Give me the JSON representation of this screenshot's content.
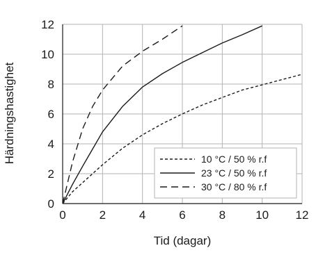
{
  "chart_data": {
    "type": "line",
    "title": "",
    "xlabel": "Tid (dagar)",
    "ylabel": "Härdningshastighet",
    "xlim": [
      0,
      12
    ],
    "ylim": [
      0,
      12
    ],
    "xticks": [
      0,
      2,
      4,
      6,
      8,
      10,
      12
    ],
    "yticks": [
      0,
      2,
      4,
      6,
      8,
      10,
      12
    ],
    "grid": true,
    "legend_position": "bottom-right",
    "series": [
      {
        "name": "10 °C / 50 % r.f",
        "style": "dotted",
        "color": "#1a1a1a",
        "x": [
          0,
          0.5,
          1,
          2,
          3,
          4,
          5,
          6,
          7,
          8,
          9,
          10,
          11,
          12
        ],
        "y": [
          0,
          0.8,
          1.4,
          2.6,
          3.7,
          4.6,
          5.35,
          6.0,
          6.6,
          7.1,
          7.6,
          7.95,
          8.3,
          8.65
        ]
      },
      {
        "name": "23 °C / 50 % r.f",
        "style": "solid",
        "color": "#1a1a1a",
        "x": [
          0,
          0.5,
          1,
          2,
          3,
          4,
          5,
          6,
          7,
          8,
          9,
          10
        ],
        "y": [
          0,
          1.3,
          2.5,
          4.8,
          6.5,
          7.8,
          8.7,
          9.45,
          10.1,
          10.75,
          11.3,
          11.9
        ]
      },
      {
        "name": "30 °C / 80 % r.f",
        "style": "dashed",
        "color": "#1a1a1a",
        "x": [
          0,
          0.5,
          1,
          1.5,
          2,
          3,
          4,
          5,
          6
        ],
        "y": [
          0,
          2.8,
          5.0,
          6.5,
          7.6,
          9.2,
          10.2,
          11.0,
          11.9
        ]
      }
    ]
  }
}
